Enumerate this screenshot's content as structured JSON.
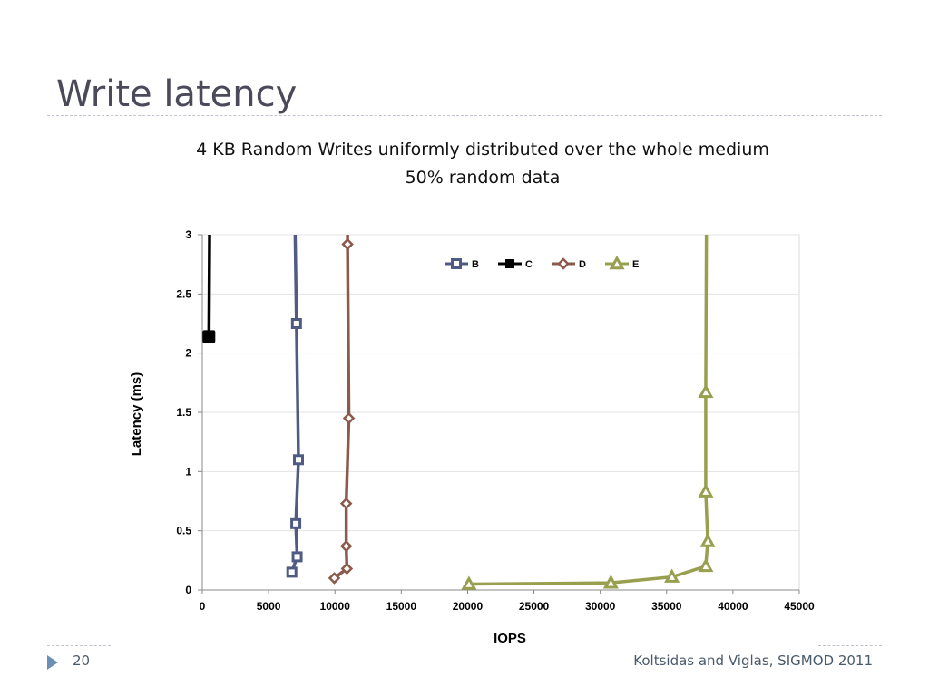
{
  "slide": {
    "title": "Write latency",
    "page_number": "20",
    "credit": "Koltsidas and Viglas, SIGMOD 2011"
  },
  "chart_data": {
    "type": "scatter",
    "title_lines": [
      "4 KB Random Writes uniformly distributed over the whole medium",
      "50% random data"
    ],
    "xlabel": "IOPS",
    "ylabel": "Latency (ms)",
    "xlim": [
      0,
      45000
    ],
    "ylim": [
      0,
      3
    ],
    "x_ticks": [
      0,
      5000,
      10000,
      15000,
      20000,
      25000,
      30000,
      35000,
      40000,
      45000
    ],
    "y_ticks": [
      0,
      0.5,
      1,
      1.5,
      2,
      2.5,
      3
    ],
    "grid": "horizontal",
    "legend_position": "top-right",
    "series": [
      {
        "name": "B",
        "color": "#4f5b82",
        "marker": "square",
        "points": [
          [
            6750,
            0.15
          ],
          [
            7150,
            0.28
          ],
          [
            7050,
            0.56
          ],
          [
            7250,
            1.1
          ],
          [
            7100,
            2.25
          ],
          [
            7000,
            3.0
          ]
        ]
      },
      {
        "name": "C",
        "color": "#000000",
        "marker": "square",
        "points": [
          [
            500,
            2.14
          ],
          [
            550,
            3.0
          ]
        ]
      },
      {
        "name": "D",
        "color": "#8b5a4a",
        "marker": "diamond",
        "points": [
          [
            9950,
            0.1
          ],
          [
            10900,
            0.18
          ],
          [
            10850,
            0.37
          ],
          [
            10850,
            0.73
          ],
          [
            11050,
            1.45
          ],
          [
            10950,
            2.92
          ],
          [
            10950,
            3.0
          ]
        ]
      },
      {
        "name": "E",
        "color": "#98a04f",
        "marker": "triangle",
        "points": [
          [
            20100,
            0.05
          ],
          [
            30800,
            0.06
          ],
          [
            35400,
            0.11
          ],
          [
            37950,
            0.2
          ],
          [
            38100,
            0.41
          ],
          [
            37950,
            0.83
          ],
          [
            37950,
            1.67
          ],
          [
            38000,
            3.0
          ]
        ]
      }
    ]
  }
}
